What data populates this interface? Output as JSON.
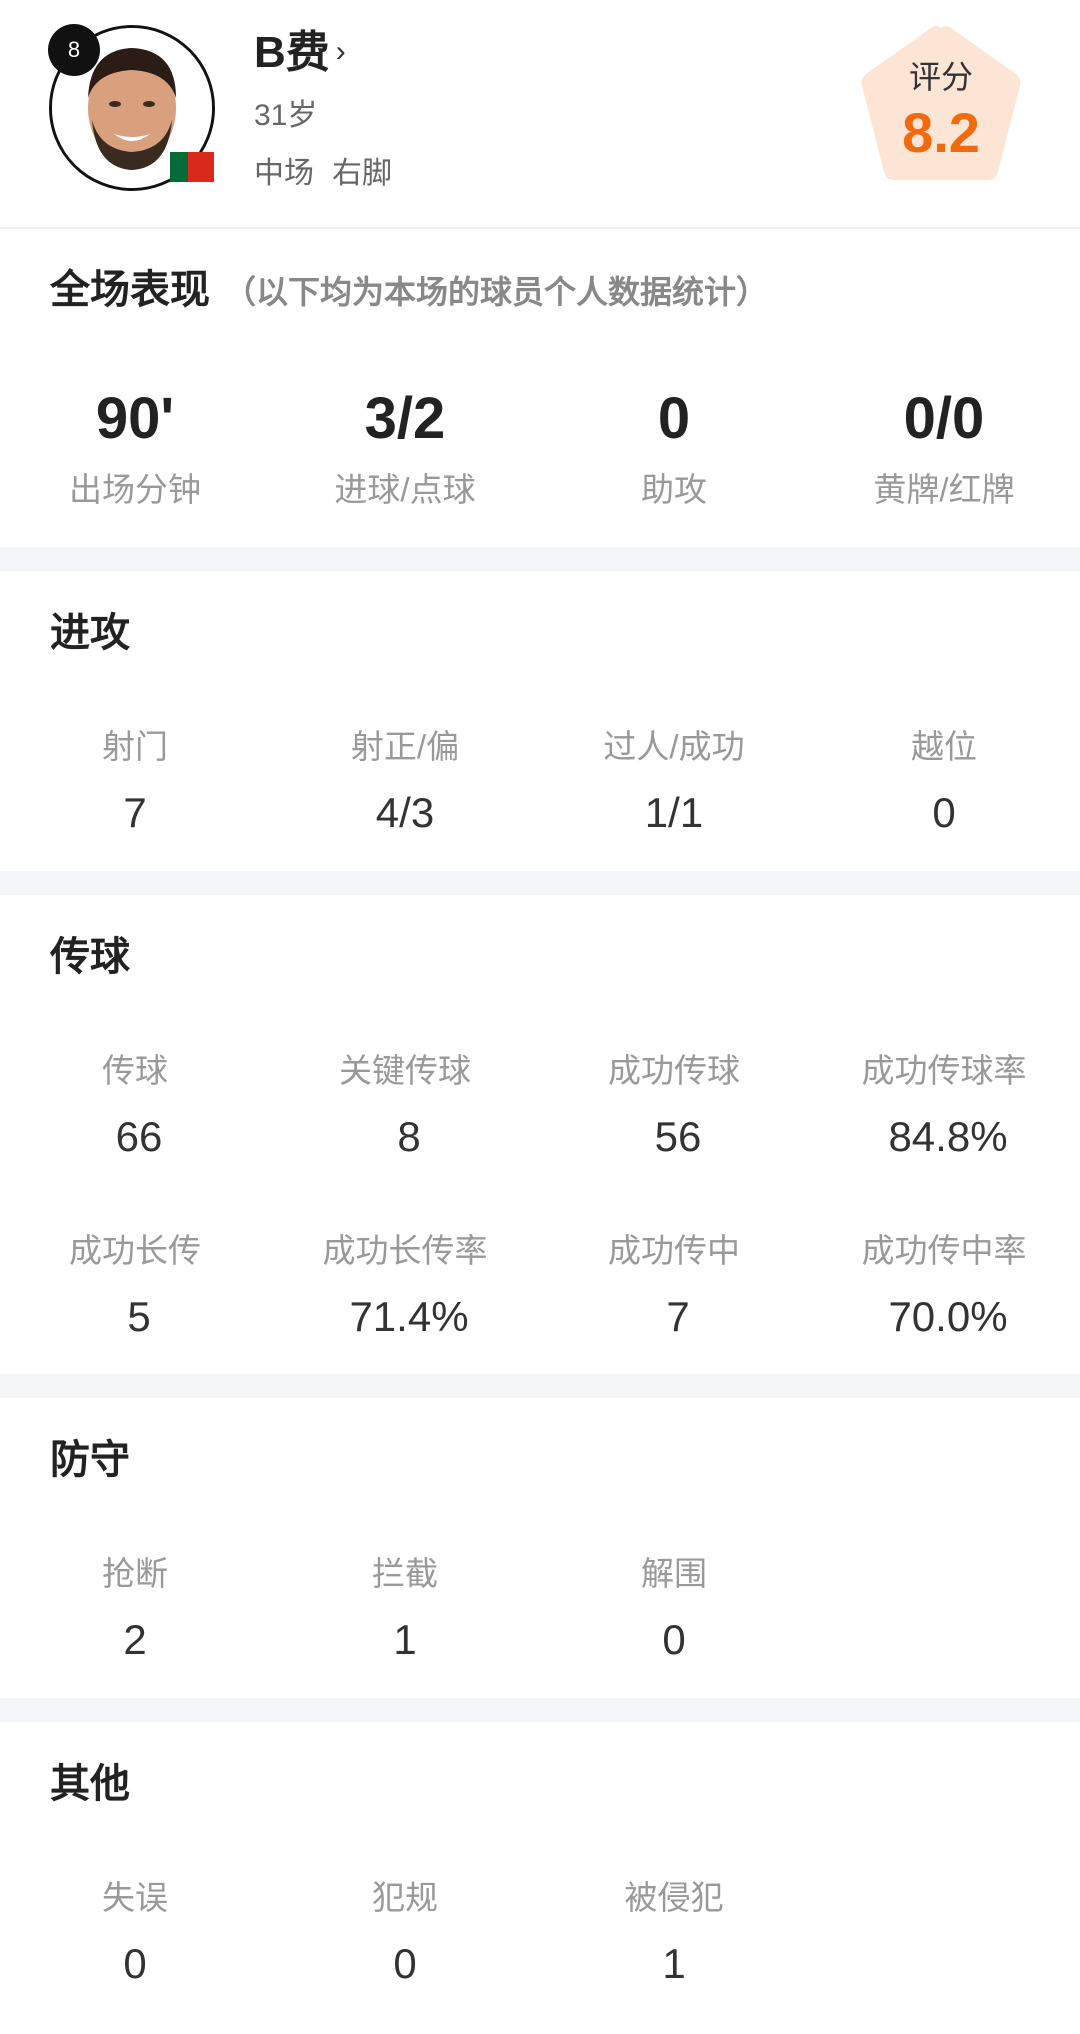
{
  "player": {
    "number": "8",
    "name": "B费",
    "chevron": "›",
    "age": "31岁",
    "position": "中场",
    "foot": "右脚",
    "flag": "portugal-flag",
    "rating_label": "评分",
    "rating": "8.2",
    "rating_color": "#f26a0c"
  },
  "overall": {
    "title": "全场表现",
    "subtitle": "（以下均为本场的球员个人数据统计）",
    "stats": [
      {
        "value": "90'",
        "label": "出场分钟"
      },
      {
        "value": "3/2",
        "label": "进球/点球"
      },
      {
        "value": "0",
        "label": "助攻"
      },
      {
        "value": "0/0",
        "label": "黄牌/红牌"
      }
    ]
  },
  "sections": [
    {
      "title": "进攻",
      "rows": [
        [
          {
            "label": "射门",
            "value": "7"
          },
          {
            "label": "射正/偏",
            "value": "4/3"
          },
          {
            "label": "过人/成功",
            "value": "1/1"
          },
          {
            "label": "越位",
            "value": "0"
          }
        ]
      ]
    },
    {
      "title": "传球",
      "rows": [
        [
          {
            "label": "传球",
            "value": "66"
          },
          {
            "label": "关键传球",
            "value": "8"
          },
          {
            "label": "成功传球",
            "value": "56"
          },
          {
            "label": "成功传球率",
            "value": "84.8%"
          }
        ],
        [
          {
            "label": "成功长传",
            "value": "5"
          },
          {
            "label": "成功长传率",
            "value": "71.4%"
          },
          {
            "label": "成功传中",
            "value": "7"
          },
          {
            "label": "成功传中率",
            "value": "70.0%"
          }
        ]
      ]
    },
    {
      "title": "防守",
      "rows": [
        [
          {
            "label": "抢断",
            "value": "2"
          },
          {
            "label": "拦截",
            "value": "1"
          },
          {
            "label": "解围",
            "value": "0"
          }
        ]
      ]
    },
    {
      "title": "其他",
      "rows": [
        [
          {
            "label": "失误",
            "value": "0"
          },
          {
            "label": "犯规",
            "value": "0"
          },
          {
            "label": "被侵犯",
            "value": "1"
          }
        ]
      ]
    }
  ]
}
